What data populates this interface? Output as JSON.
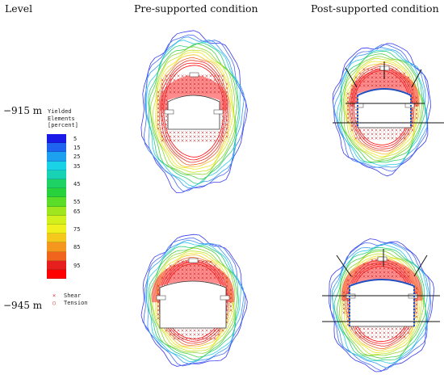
{
  "headers": {
    "level": "Level",
    "pre": "Pre-supported condition",
    "post": "Post-supported condition"
  },
  "levels": [
    "−915 m",
    "−945 m"
  ],
  "legend": {
    "title_lines": [
      "Yielded",
      "Elements",
      "[percent]"
    ],
    "items": [
      {
        "label": "5",
        "color": "#1a1ae6"
      },
      {
        "label": "15",
        "color": "#1e64f0"
      },
      {
        "label": "25",
        "color": "#1ea0f0"
      },
      {
        "label": "35",
        "color": "#19d2e6"
      },
      {
        "label": "",
        "color": "#19d2b4"
      },
      {
        "label": "45",
        "color": "#1ed264"
      },
      {
        "label": "",
        "color": "#28d23c"
      },
      {
        "label": "55",
        "color": "#5adc28"
      },
      {
        "label": "65",
        "color": "#a0e61e"
      },
      {
        "label": "",
        "color": "#d2f01e"
      },
      {
        "label": "75",
        "color": "#f0f01e"
      },
      {
        "label": "",
        "color": "#f5c81e"
      },
      {
        "label": "85",
        "color": "#f5961e"
      },
      {
        "label": "",
        "color": "#f0641e"
      },
      {
        "label": "95",
        "color": "#e61e1e"
      },
      {
        "label": "",
        "color": "#ff0000"
      }
    ],
    "marks": [
      {
        "symbol": "×",
        "label": "Shear"
      },
      {
        "symbol": "○",
        "label": "Tension"
      }
    ]
  }
}
